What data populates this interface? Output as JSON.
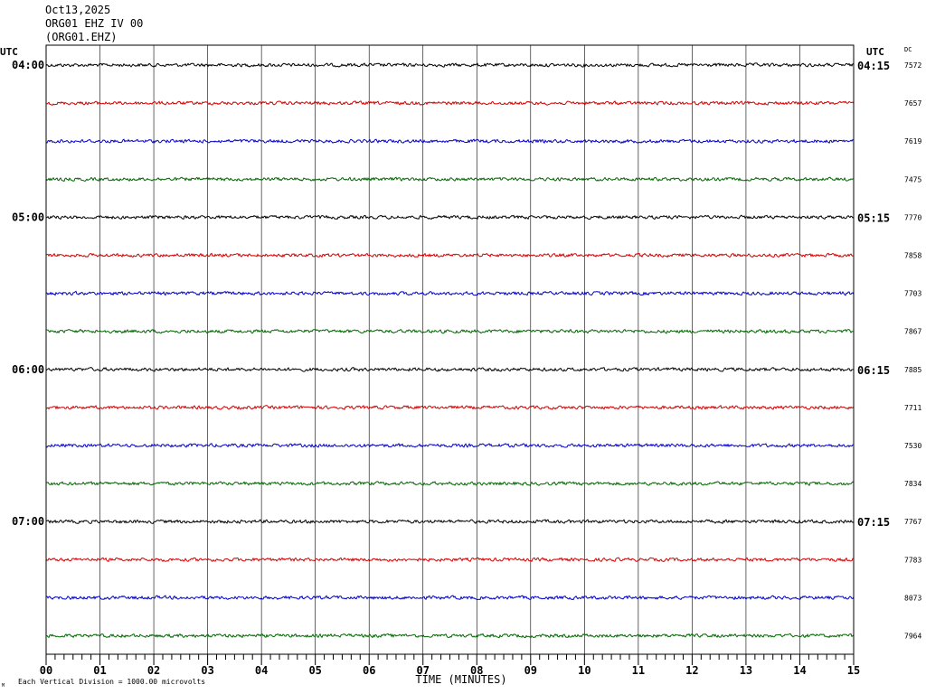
{
  "header": {
    "date": "Oct13,2025",
    "station": "ORG01 EHZ IV 00",
    "channel": "(ORG01.EHZ)"
  },
  "footer": {
    "scale_note": "Each Vertical Division = 1000.00 microvolts",
    "corner_mark": "M"
  },
  "chart_data": {
    "type": "line",
    "title": "",
    "xlabel": "TIME (MINUTES)",
    "ylabel": "",
    "x_ticks": [
      "00",
      "01",
      "02",
      "03",
      "04",
      "05",
      "06",
      "07",
      "08",
      "09",
      "10",
      "11",
      "12",
      "13",
      "14",
      "15"
    ],
    "xlim": [
      0,
      15
    ],
    "grid": true,
    "left_axis_label": "UTC",
    "right_axis_label": "UTC",
    "dc_label": "DC",
    "trace_colors": [
      "#000000",
      "#d40000",
      "#0000cc",
      "#006600"
    ],
    "hour_labels_left": [
      {
        "row": 0,
        "text": "04:00"
      },
      {
        "row": 4,
        "text": "05:00"
      },
      {
        "row": 8,
        "text": "06:00"
      },
      {
        "row": 12,
        "text": "07:00"
      }
    ],
    "hour_labels_right": [
      {
        "row": 0,
        "text": "04:15"
      },
      {
        "row": 4,
        "text": "05:15"
      },
      {
        "row": 8,
        "text": "06:15"
      },
      {
        "row": 12,
        "text": "07:15"
      }
    ],
    "dc_values": [
      "7572",
      "7657",
      "7619",
      "7475",
      "7770",
      "7858",
      "7703",
      "7867",
      "7885",
      "7711",
      "7530",
      "7834",
      "7767",
      "7783",
      "8073",
      "7964"
    ]
  }
}
